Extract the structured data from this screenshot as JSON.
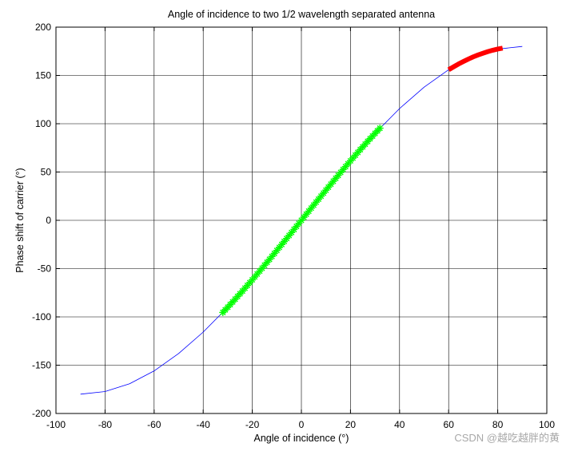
{
  "chart_data": {
    "type": "line",
    "title": "Angle of incidence to two 1/2 wavelength separated antenna",
    "xlabel": "Angle of incidence (°)",
    "ylabel": "Phase shift of carrier (°)",
    "xlim": [
      -100,
      100
    ],
    "ylim": [
      -200,
      200
    ],
    "xticks": [
      -100,
      -80,
      -60,
      -40,
      -20,
      0,
      20,
      40,
      60,
      80,
      100
    ],
    "yticks": [
      -200,
      -150,
      -100,
      -50,
      0,
      50,
      100,
      150,
      200
    ],
    "grid": true,
    "series": [
      {
        "style": "thin-line",
        "color": "#0000ff",
        "x": [
          -90,
          -80,
          -70,
          -60,
          -50,
          -40,
          -30,
          -20,
          -10,
          0,
          10,
          20,
          30,
          40,
          50,
          60,
          70,
          80,
          90
        ],
        "y": [
          -180,
          -177.3,
          -169.2,
          -155.9,
          -137.9,
          -115.7,
          -90,
          -61.6,
          -31.3,
          0,
          31.3,
          61.6,
          90,
          115.7,
          137.9,
          155.9,
          169.2,
          177.3,
          180
        ]
      },
      {
        "style": "star-markers",
        "color": "#00ff00",
        "x": [
          -32,
          -28,
          -24,
          -20,
          -16,
          -12,
          -8,
          -4,
          0,
          4,
          8,
          12,
          16,
          20,
          24,
          28,
          32
        ],
        "y": [
          -95.4,
          -84.5,
          -73.2,
          -61.6,
          -49.6,
          -37.4,
          -25.0,
          -12.6,
          0,
          12.6,
          25.0,
          37.4,
          49.6,
          61.6,
          73.2,
          84.5,
          95.4
        ]
      },
      {
        "style": "thick-line",
        "color": "#ff0000",
        "x": [
          60,
          62,
          64,
          66,
          68,
          70,
          72,
          74,
          76,
          78,
          80,
          82
        ],
        "y": [
          155.9,
          158.9,
          161.8,
          164.4,
          166.9,
          169.2,
          171.2,
          173.0,
          174.7,
          176.1,
          177.3,
          178.3
        ]
      }
    ]
  },
  "watermark": "CSDN @越吃越胖的黄"
}
